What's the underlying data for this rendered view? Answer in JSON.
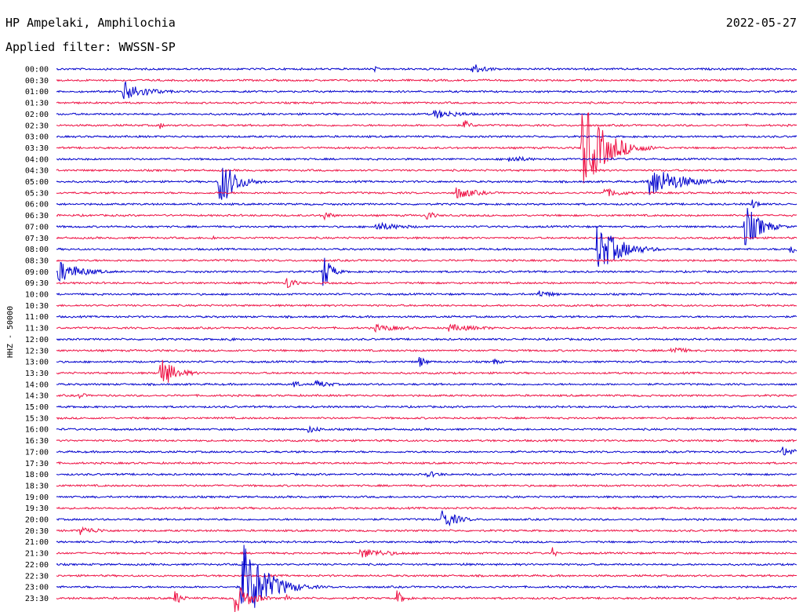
{
  "header": {
    "station": "HP Ampelaki, Amphilochia",
    "filter": "Applied filter: WWSSN-SP",
    "date": "2022-05-27"
  },
  "chart_data": {
    "type": "line",
    "title": "",
    "ylabel": "HHZ - 50000",
    "xlabel": "",
    "rows": [
      "00:00",
      "00:30",
      "01:00",
      "01:30",
      "02:00",
      "02:30",
      "03:00",
      "03:30",
      "04:00",
      "04:30",
      "05:00",
      "05:30",
      "06:00",
      "06:30",
      "07:00",
      "07:30",
      "08:00",
      "08:30",
      "09:00",
      "09:30",
      "10:00",
      "10:30",
      "11:00",
      "11:30",
      "12:00",
      "12:30",
      "13:00",
      "13:30",
      "14:00",
      "14:30",
      "15:00",
      "15:30",
      "16:00",
      "16:30",
      "17:00",
      "17:30",
      "18:00",
      "18:30",
      "19:00",
      "19:30",
      "20:00",
      "20:30",
      "21:00",
      "21:30",
      "22:00",
      "22:30",
      "23:00",
      "23:30"
    ],
    "colors": {
      "even": "#0000cc",
      "odd": "#ee1144"
    },
    "events": [
      {
        "row": 0,
        "t": 0.56,
        "amp": 8,
        "dur": 0.02
      },
      {
        "row": 0,
        "t": 0.43,
        "amp": 4,
        "dur": 0.005
      },
      {
        "row": 2,
        "t": 0.09,
        "amp": 14,
        "dur": 0.03
      },
      {
        "row": 4,
        "t": 0.51,
        "amp": 6,
        "dur": 0.04
      },
      {
        "row": 5,
        "t": 0.55,
        "amp": 8,
        "dur": 0.01
      },
      {
        "row": 5,
        "t": 0.14,
        "amp": 5,
        "dur": 0.005
      },
      {
        "row": 7,
        "t": 0.71,
        "amp": 60,
        "dur": 0.03
      },
      {
        "row": 8,
        "t": 0.61,
        "amp": 5,
        "dur": 0.03
      },
      {
        "row": 10,
        "t": 0.22,
        "amp": 35,
        "dur": 0.02
      },
      {
        "row": 10,
        "t": 0.8,
        "amp": 22,
        "dur": 0.04
      },
      {
        "row": 11,
        "t": 0.54,
        "amp": 8,
        "dur": 0.03
      },
      {
        "row": 11,
        "t": 0.74,
        "amp": 6,
        "dur": 0.03
      },
      {
        "row": 12,
        "t": 0.94,
        "amp": 7,
        "dur": 0.01
      },
      {
        "row": 13,
        "t": 0.36,
        "amp": 8,
        "dur": 0.01
      },
      {
        "row": 13,
        "t": 0.5,
        "amp": 8,
        "dur": 0.01
      },
      {
        "row": 14,
        "t": 0.43,
        "amp": 6,
        "dur": 0.04
      },
      {
        "row": 14,
        "t": 0.93,
        "amp": 30,
        "dur": 0.02
      },
      {
        "row": 15,
        "t": 0.21,
        "amp": 5,
        "dur": 0.005
      },
      {
        "row": 16,
        "t": 0.73,
        "amp": 32,
        "dur": 0.03
      },
      {
        "row": 16,
        "t": 0.99,
        "amp": 10,
        "dur": 0.01
      },
      {
        "row": 18,
        "t": 0.0,
        "amp": 16,
        "dur": 0.03
      },
      {
        "row": 18,
        "t": 0.36,
        "amp": 26,
        "dur": 0.01
      },
      {
        "row": 19,
        "t": 0.31,
        "amp": 12,
        "dur": 0.01
      },
      {
        "row": 20,
        "t": 0.65,
        "amp": 6,
        "dur": 0.02
      },
      {
        "row": 23,
        "t": 0.43,
        "amp": 5,
        "dur": 0.04
      },
      {
        "row": 23,
        "t": 0.53,
        "amp": 5,
        "dur": 0.05
      },
      {
        "row": 24,
        "t": 0.23,
        "amp": 4,
        "dur": 0.01
      },
      {
        "row": 25,
        "t": 0.83,
        "amp": 6,
        "dur": 0.02
      },
      {
        "row": 26,
        "t": 0.49,
        "amp": 8,
        "dur": 0.01
      },
      {
        "row": 26,
        "t": 0.59,
        "amp": 5,
        "dur": 0.01
      },
      {
        "row": 27,
        "t": 0.14,
        "amp": 22,
        "dur": 0.02
      },
      {
        "row": 28,
        "t": 0.32,
        "amp": 6,
        "dur": 0.01
      },
      {
        "row": 28,
        "t": 0.35,
        "amp": 6,
        "dur": 0.02
      },
      {
        "row": 29,
        "t": 0.03,
        "amp": 5,
        "dur": 0.01
      },
      {
        "row": 32,
        "t": 0.34,
        "amp": 5,
        "dur": 0.02
      },
      {
        "row": 34,
        "t": 0.98,
        "amp": 7,
        "dur": 0.03
      },
      {
        "row": 36,
        "t": 0.5,
        "amp": 5,
        "dur": 0.02
      },
      {
        "row": 40,
        "t": 0.52,
        "amp": 14,
        "dur": 0.02
      },
      {
        "row": 41,
        "t": 0.03,
        "amp": 6,
        "dur": 0.03
      },
      {
        "row": 43,
        "t": 0.41,
        "amp": 7,
        "dur": 0.04
      },
      {
        "row": 43,
        "t": 0.67,
        "amp": 8,
        "dur": 0.005
      },
      {
        "row": 44,
        "t": 0.55,
        "amp": 4,
        "dur": 0.005
      },
      {
        "row": 46,
        "t": 0.25,
        "amp": 60,
        "dur": 0.03
      },
      {
        "row": 47,
        "t": 0.24,
        "amp": 22,
        "dur": 0.02
      },
      {
        "row": 47,
        "t": 0.16,
        "amp": 10,
        "dur": 0.01
      },
      {
        "row": 47,
        "t": 0.46,
        "amp": 10,
        "dur": 0.01
      },
      {
        "row": 47,
        "t": 0.31,
        "amp": 6,
        "dur": 0.005
      }
    ]
  }
}
